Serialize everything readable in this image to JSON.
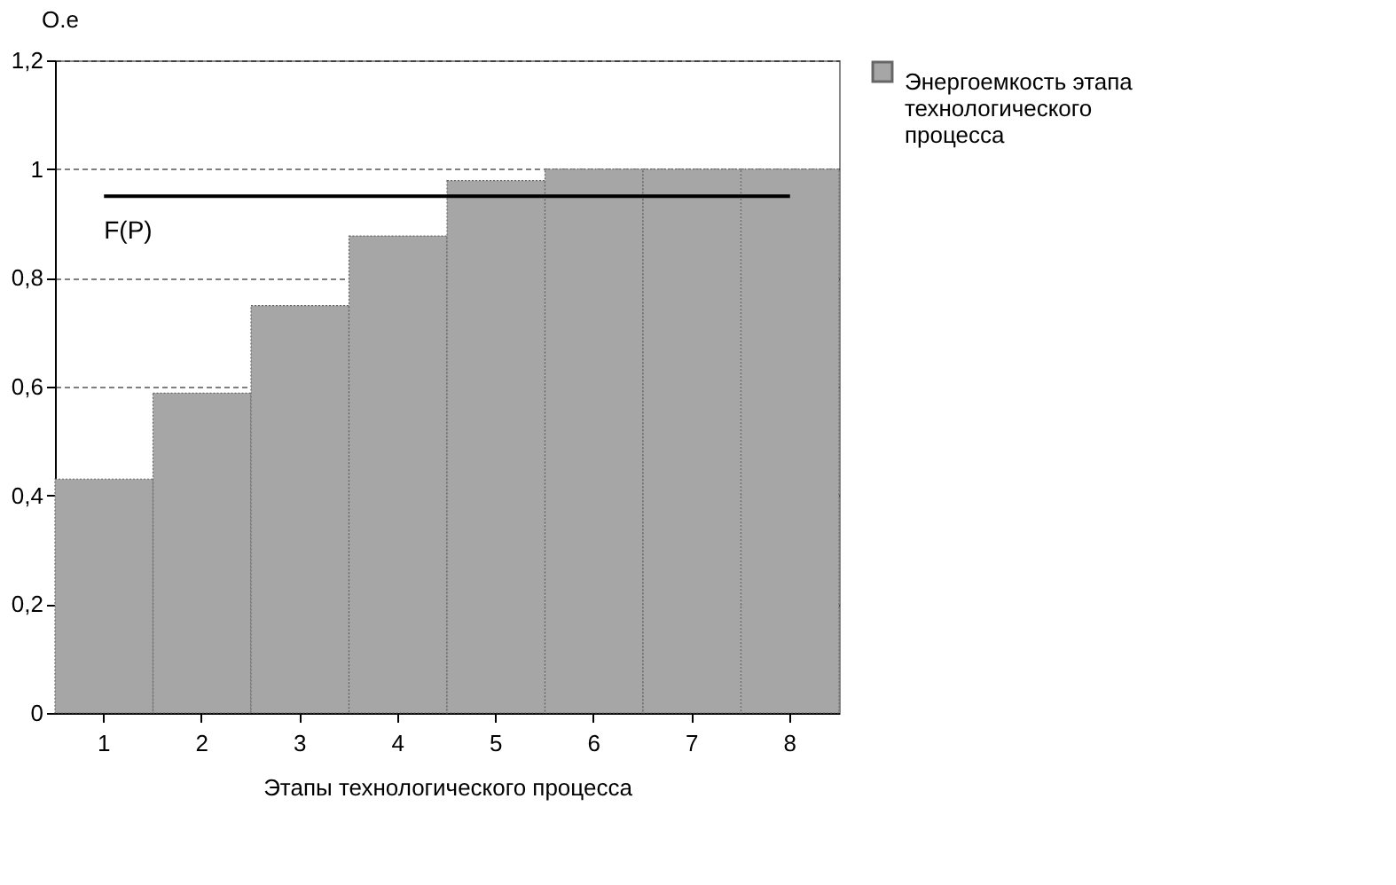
{
  "chart_data": {
    "type": "bar",
    "ylabel": "O.e",
    "xlabel": "Этапы технологического процесса",
    "categories": [
      "1",
      "2",
      "3",
      "4",
      "5",
      "6",
      "7",
      "8"
    ],
    "series": [
      {
        "name": "Энергоемкость этапа технологического процесса",
        "color": "#a6a6a6",
        "values": [
          0.43,
          0.588,
          0.749,
          0.877,
          0.979,
          1.0,
          1.0,
          1.0
        ]
      },
      {
        "name": "F(P)",
        "type": "line",
        "color": "#000000",
        "values": [
          0.95,
          0.95,
          0.95,
          0.95,
          0.95,
          0.95,
          0.95,
          0.95
        ]
      }
    ],
    "ylim": [
      0,
      1.2
    ],
    "yticks": [
      0,
      {
        "value": 0.2,
        "label": "0,2"
      },
      {
        "value": 0.4,
        "label": "0,4"
      },
      {
        "value": 0.6,
        "label": "0,6"
      },
      {
        "value": 0.8,
        "label": "0,8"
      },
      1,
      {
        "value": 1.2,
        "label": "1,2"
      }
    ],
    "grid": "y",
    "legend": "right"
  }
}
